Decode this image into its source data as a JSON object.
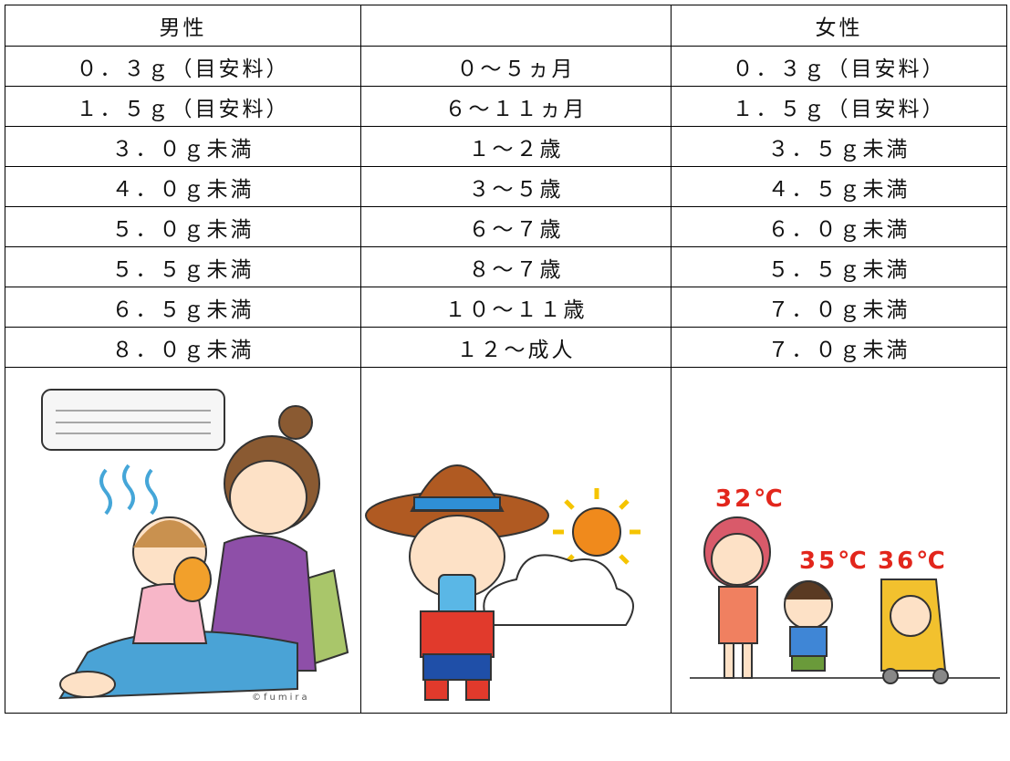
{
  "table": {
    "header": [
      "男性",
      "女性"
    ],
    "rows": [
      [
        "０．３ｇ（目安料）",
        "０～５ヵ月",
        "０．３ｇ（目安料）"
      ],
      [
        "１．５ｇ（目安料）",
        "６～１１ヵ月",
        "１．５ｇ（目安料）"
      ],
      [
        "３．０ｇ未満",
        "１～２歳",
        "３．５ｇ未満"
      ],
      [
        "４．０ｇ未満",
        "３～５歳",
        "４．５ｇ未満"
      ],
      [
        "５．０ｇ未満",
        "６～７歳",
        "６．０ｇ未満"
      ],
      [
        "５．５ｇ未満",
        "８～７歳",
        "５．５ｇ未満"
      ],
      [
        "６．５ｇ未満",
        "１０～１１歳",
        "７．０ｇ未満"
      ],
      [
        "８．０ｇ未満",
        "１２～成人",
        "７．０ｇ未満"
      ]
    ]
  },
  "illustrations": {
    "credit": "©fumira",
    "temperatures": [
      "32℃",
      "35℃",
      "36℃"
    ]
  }
}
